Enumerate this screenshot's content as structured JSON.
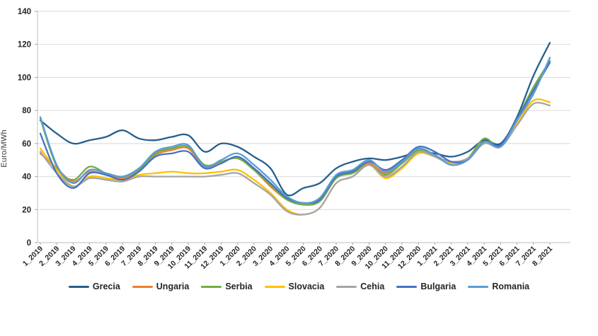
{
  "chart_data": {
    "type": "line",
    "title": "",
    "xlabel": "",
    "ylabel": "Euro/MWh",
    "ylim": [
      0,
      140
    ],
    "y_ticks": [
      0,
      20,
      40,
      60,
      80,
      100,
      120,
      140
    ],
    "grid": "horizontal",
    "legend_position": "bottom",
    "line_style": "smooth",
    "categories": [
      "1_2019",
      "2_2019",
      "3_2019",
      "4_2019",
      "5_2019",
      "6_2019",
      "7_2019",
      "8_2019",
      "9_2019",
      "10_2019",
      "11_2019",
      "12_2019",
      "1_2020",
      "2_2020",
      "3_2020",
      "4_2020",
      "5_2020",
      "6_2020",
      "7_2020",
      "8_2020",
      "9_2020",
      "10_2020",
      "11_2020",
      "12_2020",
      "1_2021",
      "2_2021",
      "3_2021",
      "4_2021",
      "5_2021",
      "6_2021",
      "7_2021",
      "8_2021"
    ],
    "series": [
      {
        "name": "Grecia",
        "color": "#26608d",
        "values": [
          74,
          66,
          60,
          62,
          64,
          68,
          63,
          62,
          64,
          65,
          55,
          60,
          58,
          52,
          45,
          29,
          33,
          36,
          45,
          49,
          51,
          50,
          52,
          55,
          54,
          52,
          55,
          62,
          60,
          76,
          101,
          121
        ]
      },
      {
        "name": "Ungaria",
        "color": "#ed7d31",
        "values": [
          54,
          45,
          37,
          43,
          41,
          39,
          44,
          53,
          56,
          57,
          46,
          49,
          51,
          44,
          34,
          26,
          23,
          25,
          39,
          43,
          48,
          42,
          48,
          56,
          53,
          48,
          51,
          61,
          58,
          74,
          93,
          110
        ]
      },
      {
        "name": "Serbia",
        "color": "#70ad47",
        "values": [
          75,
          46,
          38,
          46,
          42,
          40,
          44,
          54,
          57,
          58,
          47,
          49,
          51,
          44,
          35,
          26,
          23,
          25,
          39,
          42,
          47,
          41,
          48,
          56,
          52,
          48,
          51,
          63,
          58,
          75,
          94,
          110
        ]
      },
      {
        "name": "Slovacia",
        "color": "#ffc000",
        "values": [
          57,
          44,
          34,
          40,
          39,
          38,
          41,
          42,
          43,
          42,
          42,
          43,
          44,
          38,
          30,
          20,
          17,
          21,
          36,
          40,
          47,
          39,
          45,
          54,
          52,
          48,
          50,
          60,
          58,
          72,
          86,
          85
        ]
      },
      {
        "name": "Cehia",
        "color": "#a5a5a5",
        "values": [
          55,
          42,
          34,
          39,
          38,
          37,
          40,
          40,
          40,
          40,
          40,
          41,
          42,
          36,
          29,
          19,
          17,
          21,
          36,
          40,
          47,
          40,
          46,
          55,
          52,
          49,
          51,
          60,
          58,
          71,
          84,
          83
        ]
      },
      {
        "name": "Bulgaria",
        "color": "#4472c4",
        "values": [
          66,
          42,
          33,
          42,
          41,
          38,
          43,
          52,
          54,
          55,
          45,
          48,
          52,
          45,
          36,
          27,
          24,
          26,
          40,
          43,
          49,
          44,
          50,
          58,
          55,
          49,
          50,
          61,
          59,
          75,
          92,
          109
        ]
      },
      {
        "name": "Romania",
        "color": "#5b9bd5",
        "values": [
          76,
          47,
          36,
          44,
          42,
          40,
          45,
          55,
          58,
          59,
          46,
          50,
          54,
          47,
          38,
          28,
          24,
          27,
          41,
          44,
          50,
          43,
          49,
          57,
          53,
          47,
          50,
          61,
          58,
          74,
          90,
          112
        ]
      }
    ],
    "style": {
      "gridline_color": "#d9d9d9",
      "axis_color": "#bfbfbf",
      "tick_color": "#a6a6a6",
      "tick_label_color": "#262626",
      "line_width": 2.3
    }
  }
}
